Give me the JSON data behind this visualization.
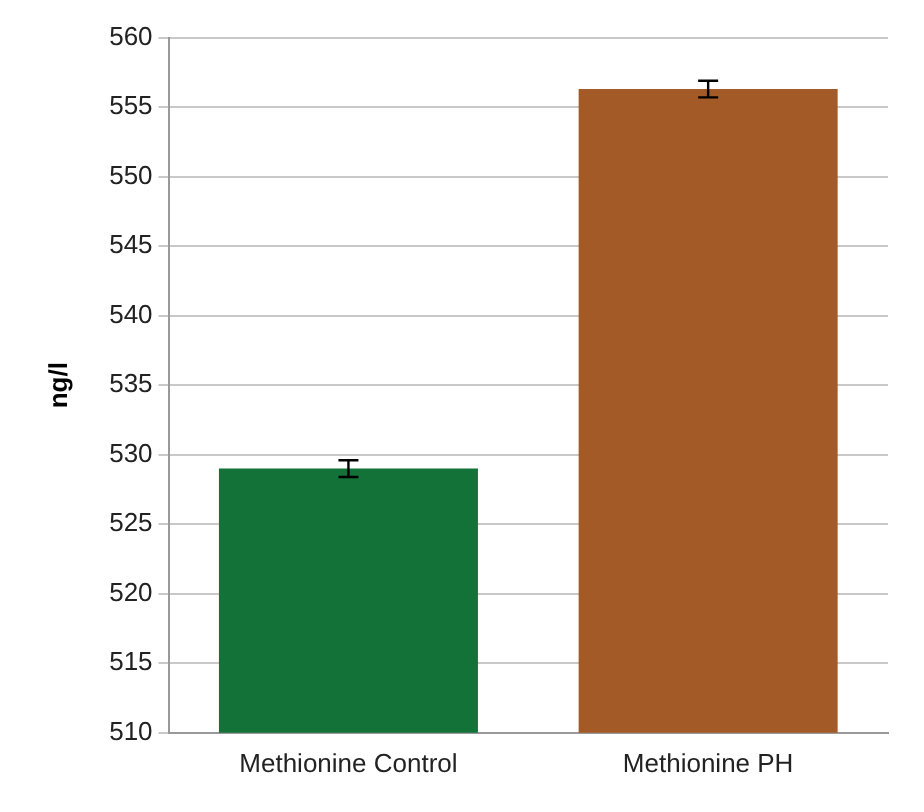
{
  "chart_data": {
    "type": "bar",
    "ylabel": "ng/l",
    "categories": [
      "Methionine Control",
      "Methionine PH"
    ],
    "values": [
      529.0,
      556.3
    ],
    "colors": [
      "#127238",
      "#a35a26"
    ],
    "errors": [
      0.6,
      0.6
    ],
    "ylim": [
      510,
      560
    ],
    "yticks": [
      510,
      515,
      520,
      525,
      530,
      535,
      540,
      545,
      550,
      555,
      560
    ],
    "grid": "y",
    "legend": false
  }
}
